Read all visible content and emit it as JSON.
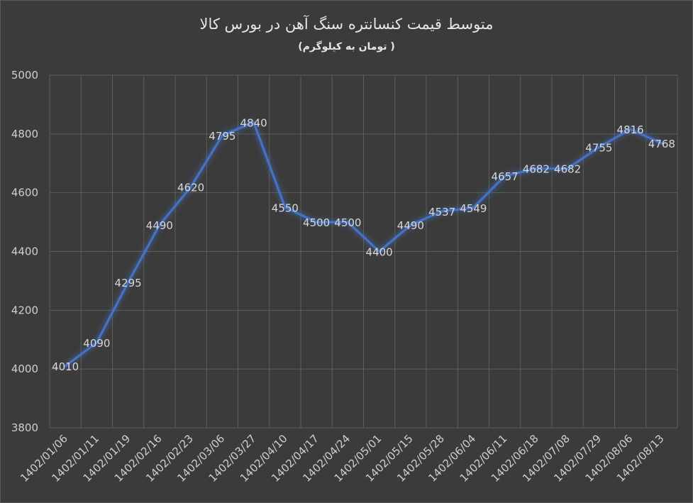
{
  "chart_data": {
    "type": "line",
    "title": "متوسط قیمت کنسانتره سنگ آهن در بورس کالا",
    "subtitle": "( تومان به کیلوگرم)",
    "xlabel": "",
    "ylabel": "",
    "ylim": [
      3800,
      5000
    ],
    "yticks": [
      3800,
      4000,
      4200,
      4400,
      4600,
      4800,
      5000
    ],
    "grid": true,
    "legend": "none",
    "categories": [
      "1402/01/06",
      "1402/01/11",
      "1402/01/19",
      "1402/02/16",
      "1402/02/23",
      "1402/03/06",
      "1402/03/27",
      "1402/04/10",
      "1402/04/17",
      "1402/04/24",
      "1402/05/01",
      "1402/05/15",
      "1402/05/28",
      "1402/06/04",
      "1402/06/11",
      "1402/06/18",
      "1402/07/08",
      "1402/07/29",
      "1402/08/06",
      "1402/08/13"
    ],
    "series": [
      {
        "values": [
          4010,
          4090,
          4295,
          4490,
          4620,
          4795,
          4840,
          4550,
          4500,
          4500,
          4400,
          4490,
          4537,
          4549,
          4657,
          4682,
          4682,
          4755,
          4816,
          4768
        ],
        "color": "#4472c4"
      }
    ]
  },
  "colors": {
    "background": "#3b3b3b",
    "grid": "#5e5e5e",
    "text": "#d8d8d8",
    "line": "#4472c4"
  }
}
